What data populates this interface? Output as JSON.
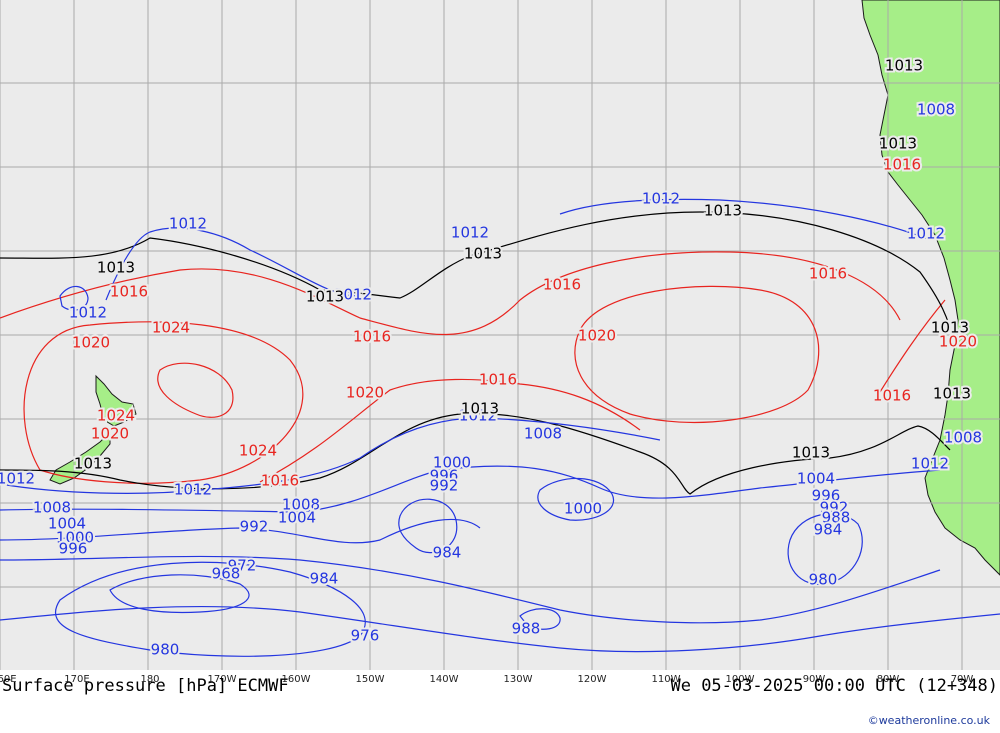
{
  "map": {
    "colors": {
      "ocean": "#ebebeb",
      "land": "#a6ee88",
      "grid": "#a9a9a9",
      "low": "#2436e0",
      "high": "#e8241f",
      "ref": "#000000",
      "coast": "#1a1a1a"
    },
    "isobars": [
      {
        "value": "1012",
        "color": "#2436e0",
        "labels": [
          [
            188,
            224
          ],
          [
            470,
            233
          ],
          [
            661,
            199
          ],
          [
            926,
            234
          ],
          [
            88,
            313
          ],
          [
            16,
            479
          ],
          [
            193,
            490
          ],
          [
            478,
            416
          ],
          [
            930,
            464
          ],
          [
            353,
            295
          ]
        ]
      },
      {
        "value": "1013",
        "color": "#000000",
        "labels": [
          [
            116,
            268
          ],
          [
            483,
            254
          ],
          [
            723,
            211
          ],
          [
            325,
            297
          ],
          [
            93,
            464
          ],
          [
            480,
            409
          ],
          [
            811,
            453
          ],
          [
            950,
            328
          ],
          [
            952,
            394
          ],
          [
            904,
            66
          ],
          [
            898,
            144
          ]
        ]
      },
      {
        "value": "1016",
        "color": "#e8241f",
        "labels": [
          [
            129,
            292
          ],
          [
            372,
            337
          ],
          [
            562,
            285
          ],
          [
            828,
            274
          ],
          [
            498,
            380
          ],
          [
            280,
            481
          ],
          [
            892,
            396
          ],
          [
            902,
            165
          ]
        ]
      },
      {
        "value": "1020",
        "color": "#e8241f",
        "labels": [
          [
            91,
            343
          ],
          [
            365,
            393
          ],
          [
            597,
            336
          ],
          [
            110,
            434
          ],
          [
            958,
            342
          ]
        ]
      },
      {
        "value": "1024",
        "color": "#e8241f",
        "labels": [
          [
            171,
            328
          ],
          [
            258,
            451
          ],
          [
            116,
            416
          ]
        ]
      },
      {
        "value": "1008",
        "color": "#2436e0",
        "labels": [
          [
            543,
            434
          ],
          [
            52,
            508
          ],
          [
            301,
            505
          ],
          [
            963,
            438
          ],
          [
            936,
            110
          ]
        ]
      },
      {
        "value": "1004",
        "color": "#2436e0",
        "labels": [
          [
            67,
            524
          ],
          [
            297,
            518
          ],
          [
            816,
            479
          ]
        ]
      },
      {
        "value": "1000",
        "color": "#2436e0",
        "labels": [
          [
            452,
            463
          ],
          [
            583,
            509
          ],
          [
            75,
            538
          ]
        ]
      },
      {
        "value": "996",
        "color": "#2436e0",
        "labels": [
          [
            444,
            476
          ],
          [
            73,
            549
          ],
          [
            826,
            496
          ]
        ]
      },
      {
        "value": "992",
        "color": "#2436e0",
        "labels": [
          [
            444,
            486
          ],
          [
            254,
            527
          ],
          [
            834,
            508
          ]
        ]
      },
      {
        "value": "988",
        "color": "#2436e0",
        "labels": [
          [
            526,
            629
          ],
          [
            836,
            518
          ]
        ]
      },
      {
        "value": "984",
        "color": "#2436e0",
        "labels": [
          [
            447,
            553
          ],
          [
            324,
            579
          ],
          [
            828,
            530
          ]
        ]
      },
      {
        "value": "980",
        "color": "#2436e0",
        "labels": [
          [
            165,
            650
          ],
          [
            823,
            580
          ]
        ]
      },
      {
        "value": "976",
        "color": "#2436e0",
        "labels": [
          [
            365,
            636
          ]
        ]
      },
      {
        "value": "972",
        "color": "#2436e0",
        "labels": [
          [
            242,
            566
          ]
        ]
      },
      {
        "value": "968",
        "color": "#2436e0",
        "labels": [
          [
            226,
            574
          ]
        ]
      }
    ]
  },
  "axis": {
    "longitude_labels": [
      "60E",
      "170E",
      "180",
      "170W",
      "160W",
      "150W",
      "140W",
      "130W",
      "120W",
      "110W",
      "100W",
      "90W",
      "80W",
      "70W"
    ]
  },
  "footer": {
    "title": "Surface pressure [hPa] ECMWF",
    "datetime": "We 05-03-2025 00:00 UTC (12+348)",
    "credit": "©weatheronline.co.uk"
  }
}
